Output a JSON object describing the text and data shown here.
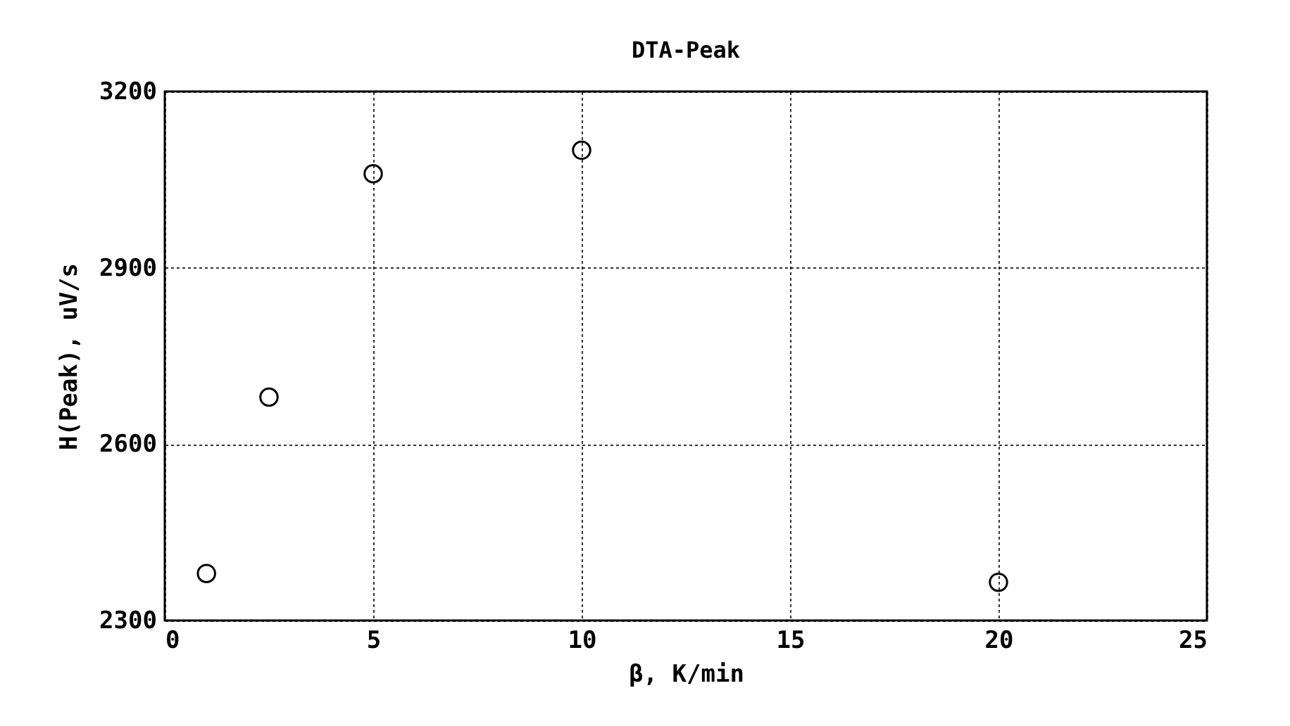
{
  "chart_data": {
    "type": "scatter",
    "title": "DTA-Peak",
    "xlabel": "β, K/min",
    "ylabel": "H(Peak), uV/s",
    "x": [
      1,
      2.5,
      5,
      10,
      20
    ],
    "series": [
      {
        "color": "#000000",
        "values": [
          2380,
          2680,
          3060,
          3100,
          2365
        ]
      }
    ],
    "xlim": [
      0,
      25
    ],
    "xticks": [
      0,
      5,
      10,
      15,
      20,
      25
    ],
    "ylim": [
      2300,
      3200
    ],
    "yticks": [
      2300,
      2600,
      2900,
      3200
    ],
    "grid": true,
    "marker": "circle"
  }
}
